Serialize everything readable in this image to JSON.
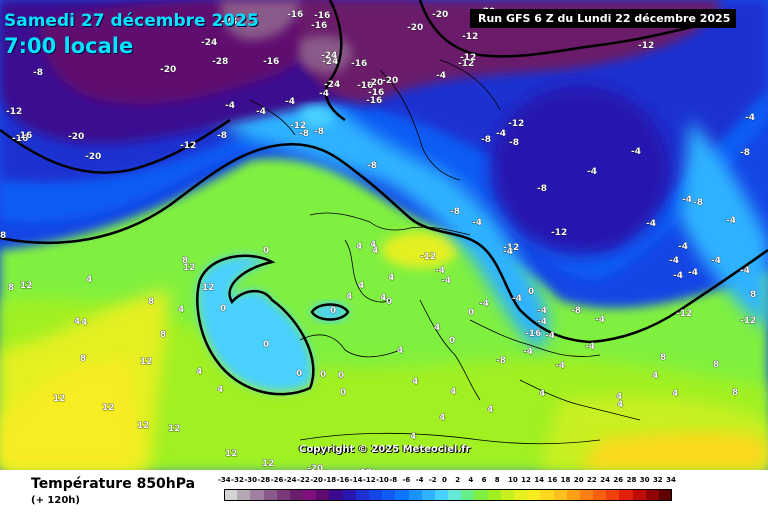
{
  "header": {
    "date_text": "Samedi 27 décembre 2025",
    "time_text": "7:00 locale",
    "run_text": "Run GFS 6 Z du Lundi 22 décembre 2025"
  },
  "copyright": "Copyright © 2025 Meteociel.fr",
  "footer": {
    "title": "Température 850hPa",
    "subtitle": "(+ 120h)"
  },
  "legend": {
    "ticks": [
      "-34",
      "-32",
      "-30",
      "-28",
      "-26",
      "-24",
      "-22",
      "-20",
      "-18",
      "-16",
      "-14",
      "-12",
      "-10",
      "-8",
      "-6",
      "-4",
      "-2",
      "0",
      "2",
      "4",
      "6",
      "8",
      "10",
      "12",
      "14",
      "16",
      "18",
      "20",
      "22",
      "24",
      "26",
      "28",
      "30",
      "32",
      "34"
    ],
    "colors": [
      "#d4d4d4",
      "#b4a8b4",
      "#a080a0",
      "#8a5a8a",
      "#7a3a7a",
      "#6a1d6a",
      "#801080",
      "#600a70",
      "#3a0a90",
      "#2818b0",
      "#1e30d0",
      "#1446e6",
      "#0e5cf4",
      "#0f74ff",
      "#1c94ff",
      "#2fb2ff",
      "#48d0ff",
      "#66e8d8",
      "#66ee88",
      "#80f040",
      "#a0f020",
      "#c8f020",
      "#e4f020",
      "#f8ec20",
      "#fcd81e",
      "#fcc01c",
      "#fca018",
      "#fc8014",
      "#f86010",
      "#f0400c",
      "#e02008",
      "#c00c06",
      "#900404",
      "#600000"
    ]
  },
  "map_labels": [
    {
      "t": "-28",
      "c": "white"
    },
    {
      "t": "-16",
      "c": "white"
    },
    {
      "t": "-16",
      "c": "white"
    },
    {
      "t": "-20",
      "c": "white"
    },
    {
      "t": "-20",
      "c": "white"
    },
    {
      "t": "-24",
      "c": "white"
    },
    {
      "t": "-20",
      "c": "white"
    },
    {
      "t": "-28",
      "c": "white"
    },
    {
      "t": "-16",
      "c": "white"
    },
    {
      "t": "-24",
      "c": "white"
    },
    {
      "t": "-20",
      "c": "white"
    },
    {
      "t": "-12",
      "c": "white"
    },
    {
      "t": "-12",
      "c": "white"
    },
    {
      "t": "-20",
      "c": "white"
    },
    {
      "t": "-8",
      "c": "white"
    },
    {
      "t": "-20",
      "c": "white"
    },
    {
      "t": "-12",
      "c": "white"
    },
    {
      "t": "-12",
      "c": "white"
    },
    {
      "t": "-16",
      "c": "white"
    },
    {
      "t": "-16",
      "c": "white"
    },
    {
      "t": "-16",
      "c": "white"
    },
    {
      "t": "-16",
      "c": "white"
    },
    {
      "t": "-24",
      "c": "white"
    },
    {
      "t": "-24",
      "c": "white"
    },
    {
      "t": "-16",
      "c": "white"
    },
    {
      "t": "-4",
      "c": "white"
    },
    {
      "t": "-4",
      "c": "white"
    },
    {
      "t": "-4",
      "c": "white"
    },
    {
      "t": "-12",
      "c": "white"
    },
    {
      "t": "-16",
      "c": "white"
    },
    {
      "t": "-16",
      "c": "white"
    },
    {
      "t": "-20",
      "c": "white"
    },
    {
      "t": "-20",
      "c": "white"
    },
    {
      "t": "-12",
      "c": "white"
    },
    {
      "t": "-8",
      "c": "white"
    },
    {
      "t": "-8",
      "c": "white"
    },
    {
      "t": "-8",
      "c": "white"
    },
    {
      "t": "-8",
      "c": "white"
    },
    {
      "t": "-8",
      "c": "white"
    },
    {
      "t": "-4",
      "c": "white"
    },
    {
      "t": "-8",
      "c": "white"
    },
    {
      "t": "-12",
      "c": "white"
    },
    {
      "t": "-4",
      "c": "white"
    },
    {
      "t": "-4",
      "c": "white"
    },
    {
      "t": "-8",
      "c": "white"
    },
    {
      "t": "-12",
      "c": "white"
    },
    {
      "t": "-4",
      "c": "white"
    },
    {
      "t": "-4",
      "c": "white"
    },
    {
      "t": "-8",
      "c": "white"
    },
    {
      "t": "-8",
      "c": "white"
    },
    {
      "t": "-4",
      "c": "white"
    },
    {
      "t": "-4",
      "c": "white"
    },
    {
      "t": "-4",
      "c": "white"
    },
    {
      "t": "-4",
      "c": "white"
    },
    {
      "t": "-4",
      "c": "white"
    },
    {
      "t": "-4",
      "c": "white"
    },
    {
      "t": "-4",
      "c": "white"
    },
    {
      "t": "-4",
      "c": "white"
    },
    {
      "t": "-4",
      "c": "white"
    },
    {
      "t": "-4",
      "c": "white"
    },
    {
      "t": "-4",
      "c": "white"
    },
    {
      "t": "-8",
      "c": "white"
    },
    {
      "t": "-8",
      "c": "white"
    },
    {
      "t": "-12",
      "c": "white"
    },
    {
      "t": "-12",
      "c": "white"
    },
    {
      "t": "-12",
      "c": "white"
    },
    {
      "t": "-16",
      "c": "white"
    },
    {
      "t": "-8",
      "c": "white"
    },
    {
      "t": "-4",
      "c": "white"
    },
    {
      "t": "-4",
      "c": "white"
    },
    {
      "t": "-4",
      "c": "white"
    },
    {
      "t": "-4",
      "c": "white"
    },
    {
      "t": "-4",
      "c": "white"
    },
    {
      "t": "-4",
      "c": "white"
    },
    {
      "t": "-4",
      "c": "white"
    },
    {
      "t": "-4",
      "c": "white"
    },
    {
      "t": "-4",
      "c": "white"
    },
    {
      "t": "-4",
      "c": "white"
    },
    {
      "t": "-4",
      "c": "white"
    },
    {
      "t": "-4",
      "c": "white"
    },
    {
      "t": "0",
      "c": "white"
    },
    {
      "t": "0",
      "c": "white"
    },
    {
      "t": "0",
      "c": "white"
    },
    {
      "t": "0",
      "c": "white"
    },
    {
      "t": "0",
      "c": "white"
    },
    {
      "t": "0",
      "c": "white"
    },
    {
      "t": "0",
      "c": "white"
    },
    {
      "t": "0",
      "c": "white"
    },
    {
      "t": "0",
      "c": "white"
    },
    {
      "t": "0",
      "c": "white"
    },
    {
      "t": "0",
      "c": "white"
    },
    {
      "t": "0",
      "c": "white"
    },
    {
      "t": "4",
      "c": "white"
    },
    {
      "t": "4",
      "c": "white"
    },
    {
      "t": "4",
      "c": "white"
    },
    {
      "t": "4",
      "c": "white"
    },
    {
      "t": "4",
      "c": "white"
    },
    {
      "t": "4",
      "c": "white"
    },
    {
      "t": "4",
      "c": "white"
    },
    {
      "t": "4",
      "c": "white"
    },
    {
      "t": "4",
      "c": "white"
    },
    {
      "t": "4",
      "c": "white"
    },
    {
      "t": "4",
      "c": "white"
    },
    {
      "t": "4",
      "c": "white"
    },
    {
      "t": "4",
      "c": "white"
    },
    {
      "t": "4",
      "c": "white"
    },
    {
      "t": "4",
      "c": "white"
    },
    {
      "t": "4",
      "c": "white"
    },
    {
      "t": "4",
      "c": "white"
    },
    {
      "t": "4",
      "c": "white"
    },
    {
      "t": "4",
      "c": "white"
    },
    {
      "t": "4",
      "c": "white"
    },
    {
      "t": "4",
      "c": "white"
    },
    {
      "t": "4",
      "c": "white"
    },
    {
      "t": "4",
      "c": "white"
    },
    {
      "t": "4",
      "c": "white"
    },
    {
      "t": "4",
      "c": "white"
    },
    {
      "t": "8",
      "c": "white"
    },
    {
      "t": "8",
      "c": "white"
    },
    {
      "t": "8",
      "c": "white"
    },
    {
      "t": "8",
      "c": "white"
    },
    {
      "t": "8",
      "c": "white"
    },
    {
      "t": "8",
      "c": "white"
    },
    {
      "t": "8",
      "c": "white"
    },
    {
      "t": "8",
      "c": "white"
    },
    {
      "t": "8",
      "c": "white"
    },
    {
      "t": "8",
      "c": "white"
    },
    {
      "t": "12",
      "c": "white"
    },
    {
      "t": "12",
      "c": "white"
    },
    {
      "t": "12",
      "c": "white"
    },
    {
      "t": "12",
      "c": "white"
    },
    {
      "t": "12",
      "c": "white"
    },
    {
      "t": "12",
      "c": "white"
    },
    {
      "t": "12",
      "c": "white"
    },
    {
      "t": "12",
      "c": "white"
    },
    {
      "t": "12",
      "c": "white"
    },
    {
      "t": "12",
      "c": "white"
    },
    {
      "t": "-20",
      "c": "white"
    },
    {
      "t": "-12",
      "c": "white"
    },
    {
      "t": "-12",
      "c": "white"
    },
    {
      "t": "-12",
      "c": "white"
    }
  ]
}
